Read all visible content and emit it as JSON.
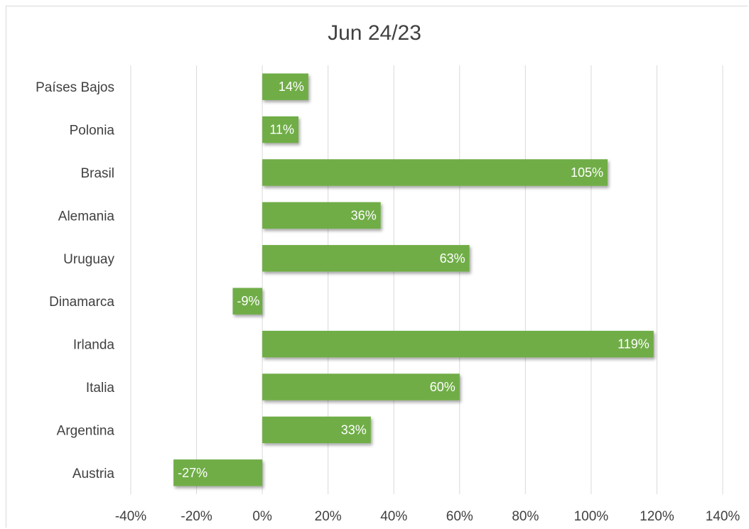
{
  "chart_data": {
    "type": "bar",
    "orientation": "horizontal",
    "title": "Jun 24/23",
    "categories": [
      "Países Bajos",
      "Polonia",
      "Brasil",
      "Alemania",
      "Uruguay",
      "Dinamarca",
      "Irlanda",
      "Italia",
      "Argentina",
      "Austria"
    ],
    "values": [
      14,
      11,
      105,
      36,
      63,
      -9,
      119,
      60,
      33,
      -27
    ],
    "data_labels": [
      "14%",
      "11%",
      "105%",
      "36%",
      "63%",
      "-9%",
      "119%",
      "60%",
      "33%",
      "-27%"
    ],
    "x_ticks": [
      -40,
      -20,
      0,
      20,
      40,
      60,
      80,
      100,
      120,
      140
    ],
    "x_tick_labels": [
      "-40%",
      "-20%",
      "0%",
      "20%",
      "40%",
      "60%",
      "80%",
      "100%",
      "120%",
      "140%"
    ],
    "xlim": [
      -40,
      140
    ],
    "xlabel": "",
    "ylabel": "",
    "grid": true,
    "legend": "none",
    "colors": {
      "bar": "#70ad47",
      "grid": "#d9d9d9",
      "text": "#404040",
      "label": "#ffffff"
    }
  }
}
